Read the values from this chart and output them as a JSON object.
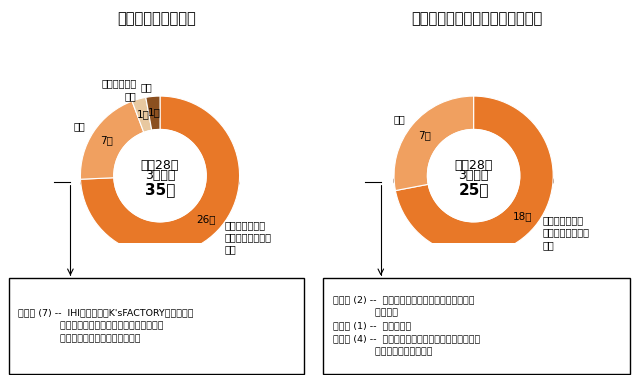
{
  "title_left": "《機能機械学課程》",
  "title_right": "《バイオエンジニアリング課程》",
  "chart1": {
    "center_line1": "平成28年",
    "center_line2": "3月卒業",
    "center_line3": "35名",
    "slices": [
      26,
      7,
      1,
      1
    ],
    "labels": [
      "信州大学大学院\n総合理工学研究科\n進学",
      "就職",
      "他大学大学院\n進学",
      "未定"
    ],
    "values_labels": [
      "26名",
      "7名",
      "1名",
      "1名"
    ],
    "colors": [
      "#E87828",
      "#F0A060",
      "#E8C8A0",
      "#8B5020"
    ],
    "shadow_color": "#6B3010",
    "start_angle": 90
  },
  "chart2": {
    "center_line1": "平成28年",
    "center_line2": "3月卒業",
    "center_line3": "25名",
    "slices": [
      18,
      7
    ],
    "labels": [
      "信州大学大学院\n総合理工学研究科\n進学",
      "就職"
    ],
    "values_labels": [
      "18名",
      "7名"
    ],
    "colors": [
      "#E87828",
      "#F0A060"
    ],
    "shadow_color": "#6B3010",
    "start_angle": 90
  },
  "box1_lines": [
    "製造系 (7) --  IHIシバウラ、K'sFACTORY、サンデン",
    "              ホールディングス、スズキ、長野オリン",
    "              バス、日本電気、本田技研工業"
  ],
  "box2_lines": [
    "製造系 (2) --  セイコーウオッチ、メカトロニクス",
    "              ワークス",
    "公務員 (1) --  長野県警察",
    "その他 (4) --  カケンテストセンター、キューセス、",
    "              テクノブロ、日本生命"
  ],
  "bg_color": "#FFFFFF"
}
